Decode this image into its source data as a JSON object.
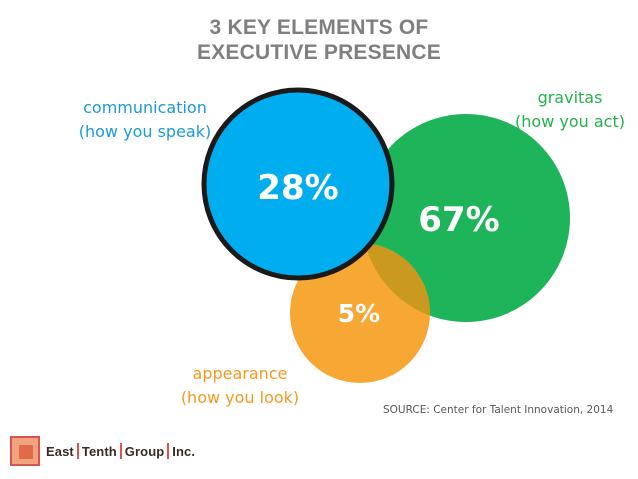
{
  "title": {
    "line1": "3 KEY ELEMENTS OF",
    "line2": "EXECUTIVE PRESENCE"
  },
  "elements": [
    {
      "id": "communication",
      "name": "communication",
      "desc": "(how you speak)",
      "percent": 28,
      "percent_label": "28%",
      "color": "#00aeef"
    },
    {
      "id": "gravitas",
      "name": "gravitas",
      "desc": "(how you act)",
      "percent": 67,
      "percent_label": "67%",
      "color": "#1eb459"
    },
    {
      "id": "appearance",
      "name": "appearance",
      "desc": "(how you look)",
      "percent": 5,
      "percent_label": "5%",
      "color": "#f7a733"
    }
  ],
  "source": "SOURCE: Center for Talent Innovation, 2014",
  "logo": {
    "parts": [
      "East",
      "Tenth",
      "Group",
      "Inc."
    ]
  },
  "colors": {
    "title": "#7f7f7f",
    "communication_label": "#1a9bd8",
    "gravitas_label": "#23b24b",
    "appearance_label": "#f39a1e",
    "overlap": "#c99a1f",
    "outline": "#1a1a1a"
  }
}
